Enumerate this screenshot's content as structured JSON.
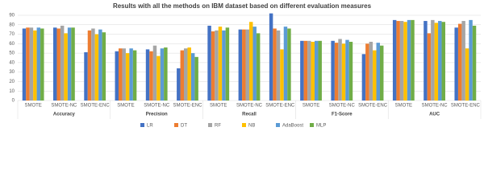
{
  "chart_data": {
    "type": "bar",
    "title": "Results with all the methods on IBM dataset based on different evaluation measures",
    "categories": [
      "SMOTE",
      "SMOTE-NC",
      "SMOTE-ENC",
      "SMOTE",
      "SMOTE-NC",
      "SMOTE-ENC",
      "SMOTE",
      "SMOTE-NC",
      "SMOTE-ENC",
      "SMOTE",
      "SMOTE-NC",
      "SMOTE-ENC",
      "SMOTE",
      "SMOTE-NC",
      "SMOTE-ENC"
    ],
    "groups": [
      "Accuracy",
      "Precision",
      "Recall",
      "F1-Score",
      "AUC"
    ],
    "series": [
      {
        "name": "LR",
        "color": "#4472c4",
        "values": [
          76,
          77,
          51,
          52,
          54,
          34,
          79,
          75,
          92,
          63,
          63,
          49,
          85,
          84,
          77
        ]
      },
      {
        "name": "DT",
        "color": "#ed7d31",
        "values": [
          77,
          76,
          74,
          55,
          52,
          53,
          73,
          75,
          76,
          63,
          61,
          60,
          84,
          71,
          81
        ]
      },
      {
        "name": "RF",
        "color": "#a5a5a5",
        "values": [
          77,
          79,
          76,
          55,
          58,
          55,
          74,
          75,
          74,
          63,
          65,
          62,
          84,
          85,
          84
        ]
      },
      {
        "name": "NB",
        "color": "#ffc000",
        "values": [
          74,
          71,
          70,
          50,
          47,
          56,
          78,
          83,
          54,
          62,
          60,
          53,
          83,
          82,
          55
        ]
      },
      {
        "name": "AdaBoost",
        "color": "#5b9bd5",
        "values": [
          77,
          77,
          75,
          55,
          55,
          50,
          74,
          78,
          78,
          63,
          64,
          61,
          85,
          84,
          85
        ]
      },
      {
        "name": "MLP",
        "color": "#70ad47",
        "values": [
          76,
          77,
          72,
          53,
          56,
          46,
          77,
          71,
          76,
          63,
          62,
          58,
          85,
          83,
          79
        ]
      }
    ],
    "ylim": [
      0,
      90
    ],
    "yticks": [
      0,
      10,
      20,
      30,
      40,
      50,
      60,
      70,
      80,
      90
    ],
    "grid": true,
    "legend": "bottom"
  }
}
